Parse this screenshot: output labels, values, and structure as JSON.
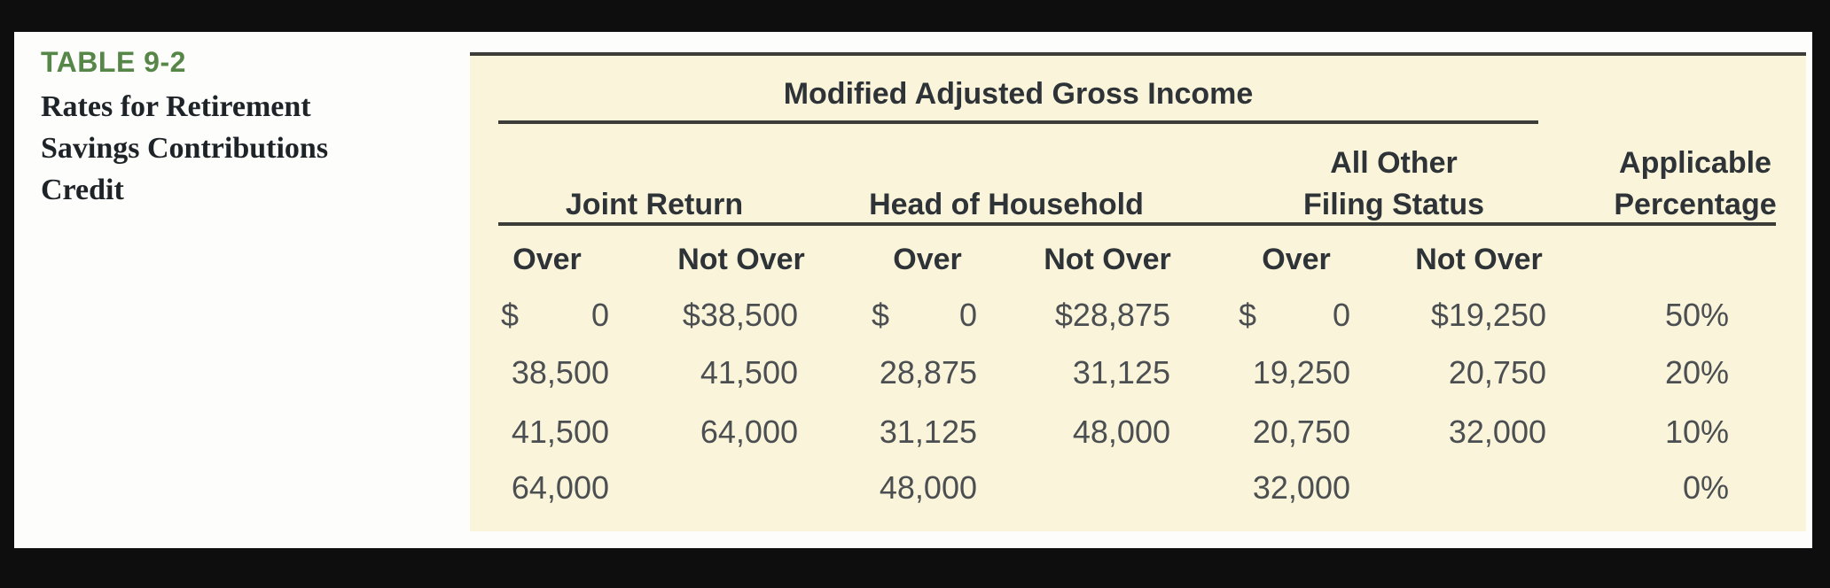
{
  "caption": {
    "tag": "TABLE 9-2",
    "lines": [
      "Rates for Retirement",
      "Savings Contributions",
      "Credit"
    ]
  },
  "table": {
    "spanner": "Modified Adjusted Gross Income",
    "group_headers": {
      "joint": "Joint Return",
      "hoh": "Head of Household",
      "allother_line1": "All Other",
      "allother_line2": "Filing Status",
      "applicable_line1": "Applicable",
      "applicable_line2": "Percentage"
    },
    "subheaders": [
      "Over",
      "Not Over",
      "Over",
      "Not Over",
      "Over",
      "Not Over"
    ],
    "rows": [
      {
        "jr_over_sym": "$",
        "jr_over": "0",
        "jr_notover": "$38,500",
        "hoh_over_sym": "$",
        "hoh_over": "0",
        "hoh_notover": "$28,875",
        "ao_over_sym": "$",
        "ao_over": "0",
        "ao_notover": "$19,250",
        "pct": "50%"
      },
      {
        "jr_over": "38,500",
        "jr_notover": "41,500",
        "hoh_over": "28,875",
        "hoh_notover": "31,125",
        "ao_over": "19,250",
        "ao_notover": "20,750",
        "pct": "20%"
      },
      {
        "jr_over": "41,500",
        "jr_notover": "64,000",
        "hoh_over": "31,125",
        "hoh_notover": "48,000",
        "ao_over": "20,750",
        "ao_notover": "32,000",
        "pct": "10%"
      },
      {
        "jr_over": "64,000",
        "jr_notover": "",
        "hoh_over": "48,000",
        "hoh_notover": "",
        "ao_over": "32,000",
        "ao_notover": "",
        "pct": "0%"
      }
    ]
  },
  "colors": {
    "frame": "#0e0e0e",
    "page": "#fdfdfb",
    "panel": "#faf4da",
    "rule": "#3c3c38",
    "caption_green": "#578748",
    "header_text": "#2e3337",
    "data_text": "#4b4f51"
  }
}
